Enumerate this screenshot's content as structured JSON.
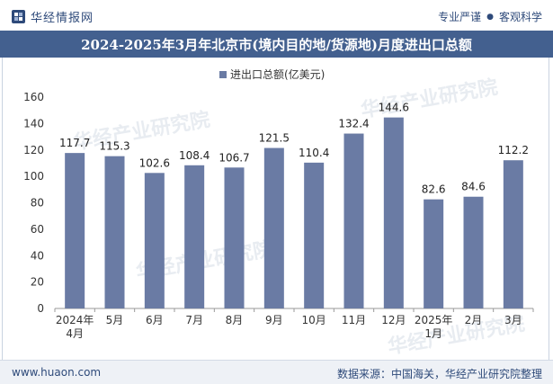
{
  "header": {
    "logo_text": "华经情报网",
    "tags": [
      "专业严谨",
      "客观科学"
    ]
  },
  "title": "2024-2025年3月年北京市(境内目的地/货源地)月度进出口总额",
  "footer": {
    "url": "www.huaon.com",
    "source": "数据来源：中国海关，华经产业研究院整理"
  },
  "watermark": "华经产业研究院",
  "colors": {
    "bar": "#6a7ba4",
    "title_bg": "#43608f",
    "accent": "#2e4a7a"
  },
  "chart_data": {
    "type": "bar",
    "categories": [
      "2024年\n4月",
      "5月",
      "6月",
      "7月",
      "8月",
      "9月",
      "10月",
      "11月",
      "12月",
      "2025年\n1月",
      "2月",
      "3月"
    ],
    "series": [
      {
        "name": "进出口总额(亿美元)",
        "values": [
          117.7,
          115.3,
          102.6,
          108.4,
          106.7,
          121.5,
          110.4,
          132.4,
          144.6,
          82.6,
          84.6,
          112.2
        ]
      }
    ],
    "ylim": [
      0,
      160
    ],
    "yticks": [
      0,
      20,
      40,
      60,
      80,
      100,
      120,
      140,
      160
    ],
    "grid": false,
    "legend": "top-center",
    "title": "2024-2025年3月年北京市(境内目的地/货源地)月度进出口总额"
  }
}
